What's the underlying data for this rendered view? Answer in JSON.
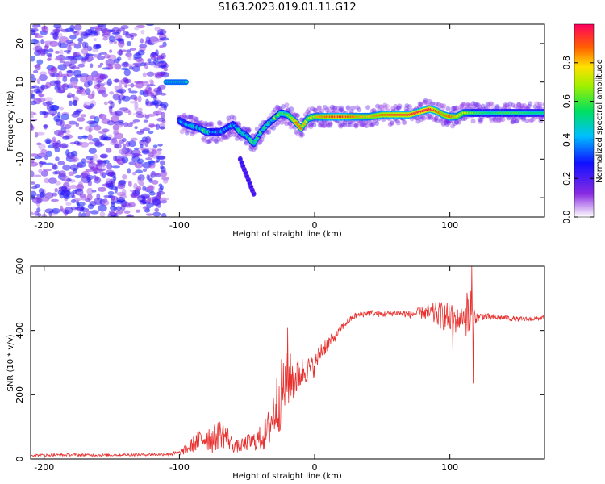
{
  "title": "S163.2023.019.01.11.G12",
  "chart_data": [
    {
      "type": "heatmap",
      "xlabel": "Height of straight line (km)",
      "ylabel": "Frequency (Hz)",
      "xlim": [
        -210,
        170
      ],
      "ylim": [
        -25,
        25
      ],
      "xticks": [
        -200,
        -100,
        0,
        100
      ],
      "yticks": [
        20,
        10,
        0,
        -10,
        -20
      ],
      "colorbar": {
        "label": "Normalized spectral amplitude",
        "range": [
          0,
          1
        ],
        "ticks": [
          0.0,
          0.2,
          0.4,
          0.6,
          0.8
        ]
      },
      "noise_region": {
        "x": [
          -210,
          -110
        ],
        "y": [
          -25,
          25
        ],
        "amplitude": [
          0.05,
          0.3
        ]
      },
      "ridge": {
        "x": [
          -100,
          -95,
          -90,
          -85,
          -80,
          -75,
          -70,
          -65,
          -60,
          -55,
          -50,
          -45,
          -40,
          -35,
          -30,
          -25,
          -20,
          -15,
          -10,
          -5,
          0,
          10,
          20,
          30,
          40,
          50,
          60,
          70,
          80,
          85,
          90,
          95,
          100,
          105,
          110,
          120,
          130,
          140,
          150,
          160,
          170
        ],
        "freq": [
          0,
          -1,
          -1.5,
          -2,
          -3,
          -3,
          -3,
          -2,
          -1,
          -3,
          -4,
          -6,
          -3,
          -1,
          0.5,
          2,
          1.5,
          0,
          -2,
          0.5,
          1,
          1,
          1,
          1,
          1,
          1.5,
          1.5,
          1.5,
          2.5,
          3,
          2.5,
          1.5,
          1,
          1,
          2,
          2,
          2,
          2,
          2,
          2,
          2
        ],
        "amplitude": [
          0.4,
          0.5,
          0.45,
          0.5,
          0.55,
          0.5,
          0.4,
          0.45,
          0.5,
          0.5,
          0.55,
          0.6,
          0.5,
          0.5,
          0.6,
          0.65,
          0.7,
          0.75,
          0.8,
          0.75,
          0.8,
          0.9,
          0.95,
          0.85,
          0.8,
          0.9,
          0.95,
          0.95,
          1.0,
          1.0,
          0.9,
          0.85,
          0.9,
          0.8,
          0.75,
          0.6,
          0.55,
          0.6,
          0.6,
          0.55,
          0.55
        ]
      },
      "secondary_features": [
        {
          "x": [
            -110,
            -95
          ],
          "freq": 10,
          "amplitude": 0.5
        },
        {
          "x": [
            -55,
            -45
          ],
          "freq_start": -10,
          "freq_end": -19,
          "amplitude": 0.25
        }
      ]
    },
    {
      "type": "line",
      "xlabel": "Height of straight line (km)",
      "ylabel": "SNR (10 * v/v)",
      "xlim": [
        -210,
        170
      ],
      "ylim": [
        0,
        600
      ],
      "xticks": [
        -200,
        -100,
        0,
        100
      ],
      "yticks": [
        0,
        200,
        400,
        600
      ],
      "series": [
        {
          "color": "#e8302e",
          "x": [
            -210,
            -200,
            -180,
            -160,
            -140,
            -120,
            -110,
            -100,
            -95,
            -90,
            -85,
            -80,
            -75,
            -70,
            -65,
            -60,
            -55,
            -50,
            -45,
            -40,
            -35,
            -30,
            -25,
            -20,
            -15,
            -10,
            -5,
            0,
            5,
            10,
            15,
            20,
            25,
            30,
            40,
            50,
            60,
            70,
            80,
            90,
            100,
            105,
            110,
            115,
            118,
            120,
            125,
            130,
            140,
            150,
            160,
            170
          ],
          "y": [
            12,
            12,
            13,
            12,
            13,
            14,
            15,
            18,
            30,
            45,
            60,
            70,
            60,
            80,
            70,
            40,
            40,
            50,
            55,
            65,
            80,
            150,
            200,
            250,
            250,
            270,
            280,
            290,
            340,
            360,
            380,
            410,
            430,
            445,
            455,
            450,
            455,
            450,
            455,
            450,
            440,
            430,
            445,
            450,
            445,
            440,
            445,
            440,
            440,
            435,
            435,
            440
          ],
          "noise": [
            4,
            4,
            4,
            4,
            4,
            4,
            5,
            8,
            15,
            25,
            35,
            45,
            45,
            45,
            40,
            20,
            20,
            25,
            30,
            40,
            60,
            90,
            110,
            90,
            70,
            50,
            40,
            35,
            30,
            25,
            15,
            12,
            10,
            10,
            10,
            10,
            10,
            12,
            20,
            40,
            50,
            40,
            30,
            120,
            30,
            15,
            12,
            10,
            8,
            8,
            8,
            8
          ],
          "spikes": [
            {
              "x": 116,
              "y": 600
            },
            {
              "x": 117,
              "y": 235
            },
            {
              "x": 102,
              "y": 340
            },
            {
              "x": -20,
              "y": 410
            }
          ]
        }
      ]
    }
  ]
}
